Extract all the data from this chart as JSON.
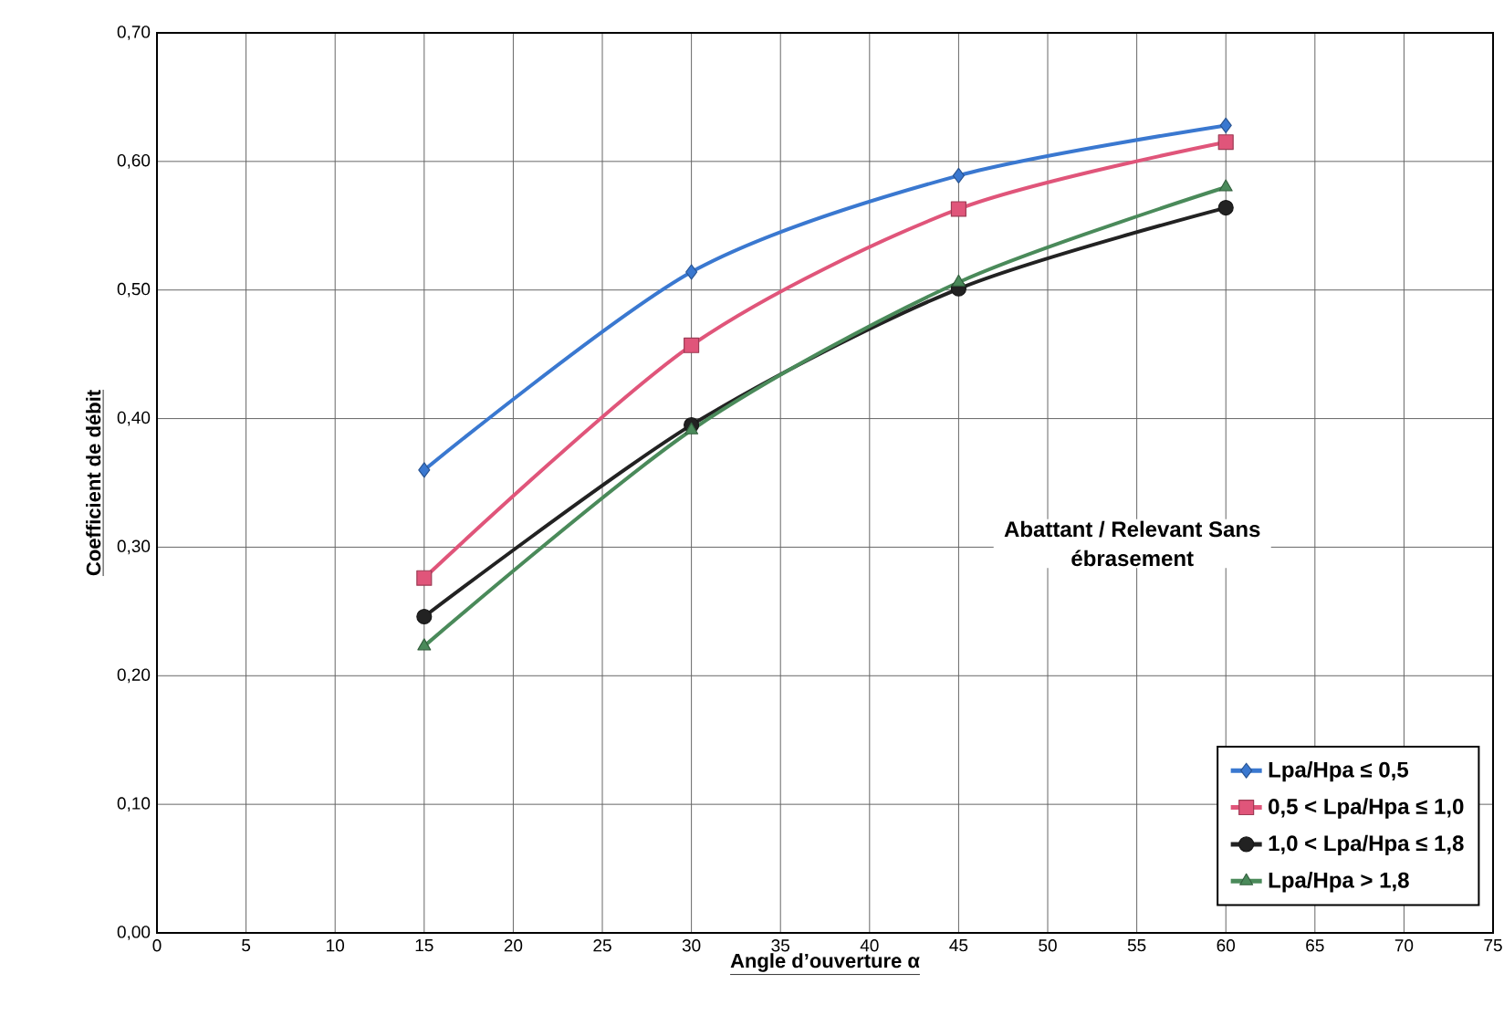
{
  "chart_data": {
    "type": "line",
    "xlabel": "Angle d’ouverture α",
    "ylabel": "Coefficient de débit",
    "legend_title": "Abattant / Relevant Sans ébrasement",
    "x": [
      15,
      30,
      45,
      60
    ],
    "series": [
      {
        "name": "Lpa/Hpa ≤ 0,5",
        "color": "#3a78d0",
        "marker": "diamond",
        "values": [
          0.36,
          0.514,
          0.589,
          0.628
        ]
      },
      {
        "name": "0,5 < Lpa/Hpa ≤ 1,0",
        "color": "#e0557a",
        "marker": "square",
        "values": [
          0.276,
          0.457,
          0.563,
          0.615
        ]
      },
      {
        "name": "1,0 < Lpa/Hpa ≤ 1,8",
        "color": "#222222",
        "marker": "circle",
        "values": [
          0.246,
          0.395,
          0.501,
          0.564
        ]
      },
      {
        "name": "Lpa/Hpa > 1,8",
        "color": "#4a8a5a",
        "marker": "triangle",
        "values": [
          0.223,
          0.391,
          0.506,
          0.58
        ]
      }
    ],
    "xlim": [
      0,
      75
    ],
    "xticks": [
      0,
      5,
      10,
      15,
      20,
      25,
      30,
      35,
      40,
      45,
      50,
      55,
      60,
      65,
      70,
      75
    ],
    "ylim": [
      0,
      0.7
    ],
    "yticks": [
      {
        "value": 0,
        "label": "0,00"
      },
      {
        "value": 0.1,
        "label": "0,10"
      },
      {
        "value": 0.2,
        "label": "0,20"
      },
      {
        "value": 0.3,
        "label": "0,30"
      },
      {
        "value": 0.4,
        "label": "0,40"
      },
      {
        "value": 0.5,
        "label": "0,50"
      },
      {
        "value": 0.6,
        "label": "0,60"
      },
      {
        "value": 0.7,
        "label": "0,70"
      }
    ],
    "grid": true,
    "legend": "bottom right",
    "line_style": "solid"
  }
}
